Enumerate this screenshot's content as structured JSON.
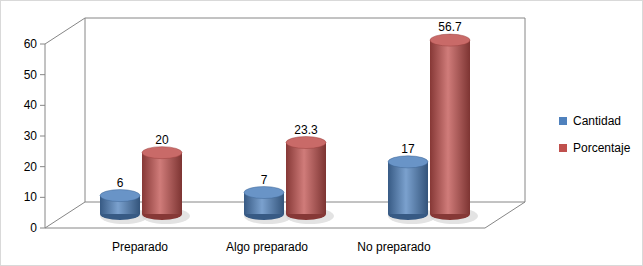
{
  "chart_data": {
    "type": "bar",
    "categories": [
      "Preparado",
      "Algo preparado",
      "No preparado"
    ],
    "series": [
      {
        "name": "Cantidad",
        "color": "#4f81bd",
        "values": [
          6,
          7,
          17
        ]
      },
      {
        "name": "Porcentaje",
        "color": "#c0504d",
        "values": [
          20,
          23.3,
          56.7
        ]
      }
    ],
    "ylim": [
      0,
      60
    ],
    "yticks": [
      0,
      10,
      20,
      30,
      40,
      50,
      60
    ],
    "grid": false,
    "legend": "right",
    "data_labels": true
  }
}
